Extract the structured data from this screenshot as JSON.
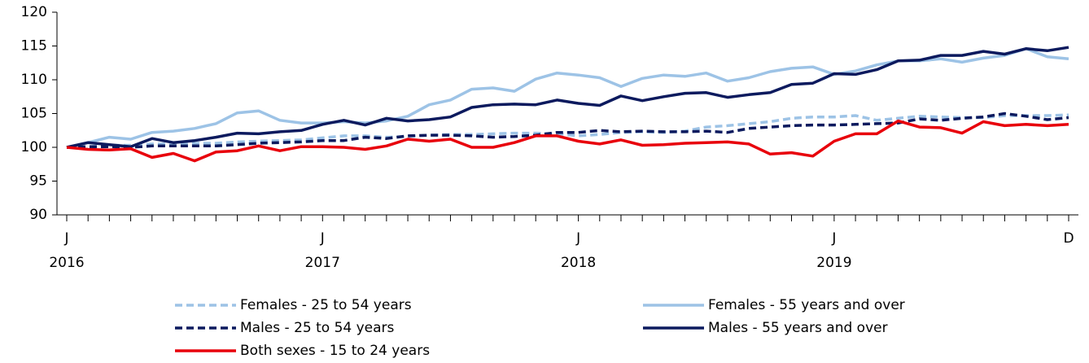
{
  "chart_data": {
    "type": "line",
    "categories": [
      "J",
      null,
      null,
      null,
      null,
      null,
      null,
      null,
      null,
      null,
      null,
      null,
      "J",
      null,
      null,
      null,
      null,
      null,
      null,
      null,
      null,
      null,
      null,
      null,
      "J",
      null,
      null,
      null,
      null,
      null,
      null,
      null,
      null,
      null,
      null,
      null,
      "J",
      null,
      null,
      null,
      null,
      null,
      null,
      null,
      null,
      null,
      null,
      "D"
    ],
    "category_groups": [
      "2016",
      "2017",
      "2018",
      "2019"
    ],
    "ylim": [
      90,
      120
    ],
    "yticks": [
      90,
      95,
      100,
      105,
      110,
      115,
      120
    ],
    "series": [
      {
        "name": "Females - 25 to 54 years",
        "color": "#9dc3e6",
        "dashed": true,
        "values": [
          100,
          100.1,
          100.3,
          100.3,
          100.5,
          100.5,
          100.6,
          100.6,
          100.8,
          100.9,
          101.0,
          101.1,
          101.4,
          101.7,
          101.7,
          101.5,
          101.6,
          101.8,
          101.9,
          101.9,
          102.0,
          102.1,
          102.1,
          102.0,
          101.7,
          101.9,
          102.2,
          102.3,
          102.2,
          102.4,
          103.0,
          103.2,
          103.5,
          103.8,
          104.3,
          104.5,
          104.5,
          104.7,
          104.0,
          104.3,
          104.6,
          104.5,
          104.4,
          104.4,
          104.7,
          104.7,
          104.7,
          104.8
        ]
      },
      {
        "name": "Females - 55 years and over",
        "color": "#9dc3e6",
        "dashed": false,
        "values": [
          100,
          100.7,
          101.5,
          101.2,
          102.2,
          102.4,
          102.8,
          103.5,
          105.1,
          105.4,
          104.0,
          103.6,
          103.6,
          103.8,
          103.6,
          103.9,
          104.6,
          106.3,
          107.0,
          108.6,
          108.8,
          108.3,
          110.1,
          111.0,
          110.7,
          110.3,
          109.0,
          110.2,
          110.7,
          110.5,
          111.0,
          109.8,
          110.3,
          111.2,
          111.7,
          111.9,
          110.8,
          111.3,
          112.2,
          112.8,
          112.8,
          113.1,
          112.6,
          113.2,
          113.6,
          114.6,
          113.4,
          113.1
        ]
      },
      {
        "name": "Males - 25 to 54 years",
        "color": "#0c1a5e",
        "dashed": true,
        "values": [
          100,
          100.1,
          100.1,
          100.0,
          100.2,
          100.2,
          100.2,
          100.2,
          100.4,
          100.6,
          100.7,
          100.8,
          101.0,
          101.0,
          101.5,
          101.3,
          101.7,
          101.8,
          101.8,
          101.7,
          101.5,
          101.6,
          101.8,
          102.2,
          102.2,
          102.5,
          102.3,
          102.4,
          102.3,
          102.3,
          102.4,
          102.2,
          102.8,
          103.0,
          103.2,
          103.3,
          103.3,
          103.4,
          103.5,
          103.6,
          104.2,
          104.0,
          104.3,
          104.5,
          105.0,
          104.6,
          104.1,
          104.4
        ]
      },
      {
        "name": "Males - 55 years and over",
        "color": "#0c1a5e",
        "dashed": false,
        "values": [
          100,
          100.7,
          100.4,
          100.1,
          101.3,
          100.7,
          101.0,
          101.5,
          102.1,
          102.0,
          102.3,
          102.5,
          103.4,
          104.0,
          103.3,
          104.3,
          103.9,
          104.1,
          104.5,
          105.9,
          106.3,
          106.4,
          106.3,
          107.0,
          106.5,
          106.2,
          107.6,
          106.9,
          107.5,
          108.0,
          108.1,
          107.4,
          107.8,
          108.1,
          109.3,
          109.5,
          110.9,
          110.8,
          111.5,
          112.8,
          112.9,
          113.6,
          113.6,
          114.2,
          113.8,
          114.6,
          114.3,
          114.8
        ]
      },
      {
        "name": "Both sexes - 15 to 24 years",
        "color": "#e8000b",
        "dashed": false,
        "values": [
          100,
          99.7,
          99.6,
          99.8,
          98.5,
          99.1,
          98.0,
          99.3,
          99.5,
          100.2,
          99.5,
          100.1,
          100.1,
          100.0,
          99.7,
          100.2,
          101.2,
          100.9,
          101.2,
          100.0,
          100.0,
          100.7,
          101.7,
          101.7,
          100.9,
          100.5,
          101.1,
          100.3,
          100.4,
          100.6,
          100.7,
          100.8,
          100.5,
          99.0,
          99.2,
          98.7,
          100.9,
          102.0,
          102.0,
          103.9,
          103.0,
          102.9,
          102.1,
          103.8,
          103.2,
          103.4,
          103.2,
          103.4
        ]
      }
    ]
  }
}
